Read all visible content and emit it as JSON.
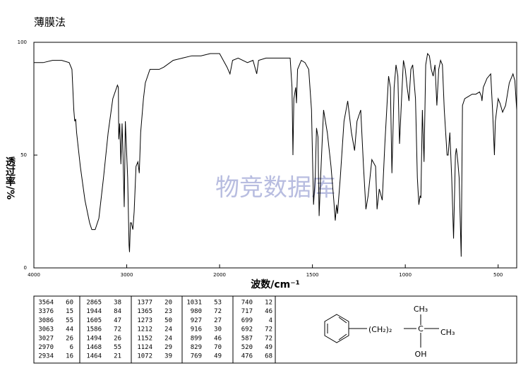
{
  "chart_data": {
    "type": "line",
    "title": "薄膜法",
    "watermark": "物竞数据库",
    "xlabel": "波数/cm⁻¹",
    "ylabel": "透过率/%",
    "x": [
      4000,
      3900,
      3800,
      3700,
      3620,
      3590,
      3570,
      3560,
      3550,
      3540,
      3500,
      3450,
      3400,
      3376,
      3340,
      3300,
      3250,
      3200,
      3150,
      3100,
      3090,
      3086,
      3075,
      3063,
      3050,
      3040,
      3027,
      3015,
      3005,
      2990,
      2975,
      2970,
      2960,
      2950,
      2940,
      2934,
      2920,
      2900,
      2880,
      2865,
      2850,
      2820,
      2800,
      2750,
      2700,
      2650,
      2600,
      2500,
      2400,
      2300,
      2200,
      2100,
      2000,
      1980,
      1960,
      1944,
      1930,
      1900,
      1850,
      1820,
      1800,
      1790,
      1750,
      1700,
      1650,
      1620,
      1610,
      1605,
      1600,
      1590,
      1586,
      1580,
      1560,
      1540,
      1520,
      1505,
      1494,
      1485,
      1478,
      1470,
      1468,
      1464,
      1455,
      1440,
      1420,
      1400,
      1385,
      1377,
      1370,
      1365,
      1350,
      1330,
      1310,
      1290,
      1273,
      1260,
      1240,
      1225,
      1212,
      1200,
      1180,
      1160,
      1152,
      1140,
      1124,
      1110,
      1090,
      1080,
      1072,
      1060,
      1050,
      1040,
      1031,
      1020,
      1010,
      1000,
      990,
      980,
      970,
      960,
      945,
      935,
      927,
      920,
      916,
      908,
      899,
      890,
      880,
      870,
      860,
      850,
      840,
      830,
      820,
      810,
      800,
      790,
      775,
      769,
      760,
      750,
      740,
      730,
      725,
      717,
      710,
      699,
      692,
      680,
      660,
      640,
      620,
      600,
      590,
      587,
      580,
      560,
      540,
      530,
      520,
      515,
      500,
      490,
      476,
      460,
      440,
      420,
      410,
      400
    ],
    "series": [
      {
        "color": "#000000",
        "values": [
          91,
          91,
          92,
          92,
          91,
          88,
          70,
          65,
          66,
          60,
          45,
          30,
          20,
          17,
          17,
          22,
          40,
          60,
          75,
          81,
          80,
          57,
          64,
          46,
          64,
          50,
          27,
          65,
          55,
          40,
          10,
          7,
          20,
          20,
          18,
          17,
          25,
          45,
          47,
          42,
          60,
          75,
          82,
          88,
          88,
          88,
          89,
          92,
          93,
          94,
          94,
          95,
          95,
          92,
          89,
          86,
          92,
          93,
          91,
          92,
          86,
          92,
          93,
          93,
          93,
          93,
          80,
          50,
          75,
          80,
          73,
          88,
          92,
          91,
          88,
          70,
          28,
          40,
          62,
          58,
          45,
          23,
          42,
          70,
          60,
          45,
          30,
          21,
          28,
          24,
          40,
          65,
          74,
          60,
          52,
          65,
          70,
          45,
          26,
          32,
          48,
          45,
          26,
          35,
          30,
          55,
          85,
          80,
          42,
          80,
          90,
          85,
          55,
          75,
          92,
          88,
          80,
          74,
          88,
          90,
          75,
          40,
          28,
          32,
          31,
          70,
          47,
          90,
          95,
          94,
          88,
          85,
          90,
          72,
          88,
          92,
          90,
          70,
          50,
          50,
          60,
          40,
          13,
          50,
          53,
          47,
          40,
          5,
          72,
          75,
          76,
          77,
          77,
          78,
          76,
          74,
          80,
          84,
          86,
          70,
          50,
          65,
          75,
          73,
          69,
          72,
          82,
          86,
          83,
          70
        ]
      }
    ],
    "xlim": [
      4000,
      400
    ],
    "ylim": [
      0,
      100
    ],
    "xticks": [
      4000,
      3000,
      2000,
      1500,
      1000,
      500
    ],
    "yticks": [
      0,
      50,
      100
    ]
  },
  "peak_table": [
    [
      [
        3564,
        60
      ],
      [
        3376,
        15
      ],
      [
        3086,
        55
      ],
      [
        3063,
        44
      ],
      [
        3027,
        26
      ],
      [
        2970,
        6
      ],
      [
        2934,
        16
      ]
    ],
    [
      [
        2865,
        38
      ],
      [
        1944,
        84
      ],
      [
        1605,
        47
      ],
      [
        1586,
        72
      ],
      [
        1494,
        26
      ],
      [
        1468,
        55
      ],
      [
        1464,
        21
      ]
    ],
    [
      [
        1377,
        20
      ],
      [
        1365,
        23
      ],
      [
        1273,
        50
      ],
      [
        1212,
        24
      ],
      [
        1152,
        24
      ],
      [
        1124,
        29
      ],
      [
        1072,
        39
      ]
    ],
    [
      [
        1031,
        53
      ],
      [
        980,
        72
      ],
      [
        927,
        27
      ],
      [
        916,
        30
      ],
      [
        899,
        46
      ],
      [
        829,
        70
      ],
      [
        769,
        49
      ]
    ],
    [
      [
        740,
        12
      ],
      [
        717,
        46
      ],
      [
        699,
        4
      ],
      [
        692,
        72
      ],
      [
        587,
        72
      ],
      [
        520,
        49
      ],
      [
        476,
        68
      ]
    ]
  ],
  "structure": {
    "top": "CH₃",
    "chain": "(CH₂)₂",
    "center": "C",
    "right": "CH₃",
    "bottom": "OH"
  }
}
